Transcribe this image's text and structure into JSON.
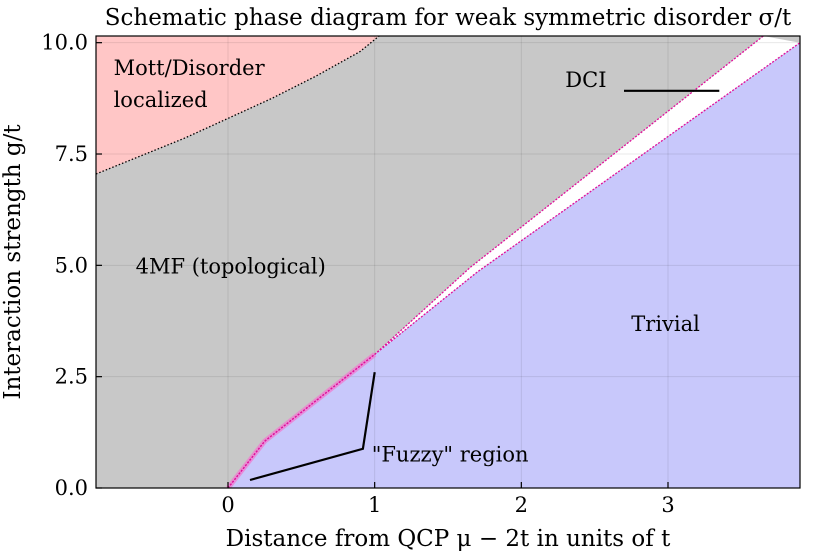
{
  "chart_data": {
    "type": "phase-diagram",
    "title": "Schematic phase diagram for weak symmetric disorder σ/t",
    "xlabel": "Distance from QCP μ − 2t in units of t",
    "ylabel": "Interaction strength g/t",
    "xlim": [
      -0.9,
      3.9
    ],
    "ylim": [
      0,
      10.15
    ],
    "x_ticks": [
      {
        "value": 0,
        "label": "0"
      },
      {
        "value": 1,
        "label": "1"
      },
      {
        "value": 2,
        "label": "2"
      },
      {
        "value": 3,
        "label": "3"
      }
    ],
    "y_ticks": [
      {
        "value": 0,
        "label": "0.0"
      },
      {
        "value": 2.5,
        "label": "2.5"
      },
      {
        "value": 5,
        "label": "5.0"
      },
      {
        "value": 7.5,
        "label": "7.5"
      },
      {
        "value": 10,
        "label": "10.0"
      }
    ],
    "grid": true,
    "colors": {
      "topological": "#c8c8c8",
      "mott": "#ffc6c6",
      "trivial": "#c8c8fb",
      "boundary": "#e0109a",
      "fuzzy_glow": "#f07bd0"
    },
    "regions": [
      {
        "id": "topological",
        "label": "4MF (topological)",
        "label_at": [
          -0.63,
          5.0
        ]
      },
      {
        "id": "mott",
        "label_lines": [
          "Mott/Disorder",
          "localized"
        ],
        "label_at": [
          -0.78,
          9.45
        ]
      },
      {
        "id": "trivial",
        "label": "Trivial",
        "label_at": [
          2.75,
          3.7
        ]
      }
    ],
    "mott_boundary": [
      [
        -0.9,
        7.05
      ],
      [
        -0.6,
        7.45
      ],
      [
        -0.3,
        7.85
      ],
      [
        0.0,
        8.3
      ],
      [
        0.3,
        8.75
      ],
      [
        0.6,
        9.25
      ],
      [
        0.9,
        9.8
      ],
      [
        1.03,
        10.15
      ]
    ],
    "upper_transition": [
      [
        0,
        0
      ],
      [
        0.25,
        1.05
      ],
      [
        1.0,
        3.0
      ],
      [
        1.65,
        4.95
      ],
      [
        3.65,
        10.15
      ]
    ],
    "lower_transition": [
      [
        0,
        0
      ],
      [
        0.25,
        1.05
      ],
      [
        1.0,
        3.0
      ],
      [
        1.7,
        4.85
      ],
      [
        3.9,
        10.0
      ]
    ],
    "fuzzy_segment": [
      [
        0,
        0
      ],
      [
        0.25,
        1.05
      ],
      [
        1.0,
        3.0
      ]
    ],
    "annotations": [
      {
        "id": "dci",
        "text": "DCI",
        "text_at": [
          2.3,
          9.0
        ],
        "line": [
          [
            2.7,
            8.92
          ],
          [
            3.35,
            8.92
          ]
        ]
      },
      {
        "id": "fuzzy",
        "text": "\"Fuzzy\" region",
        "text_at": [
          0.98,
          0.6
        ],
        "line": [
          [
            0.15,
            0.18
          ],
          [
            0.92,
            0.88
          ],
          [
            1.0,
            2.6
          ]
        ]
      }
    ]
  }
}
